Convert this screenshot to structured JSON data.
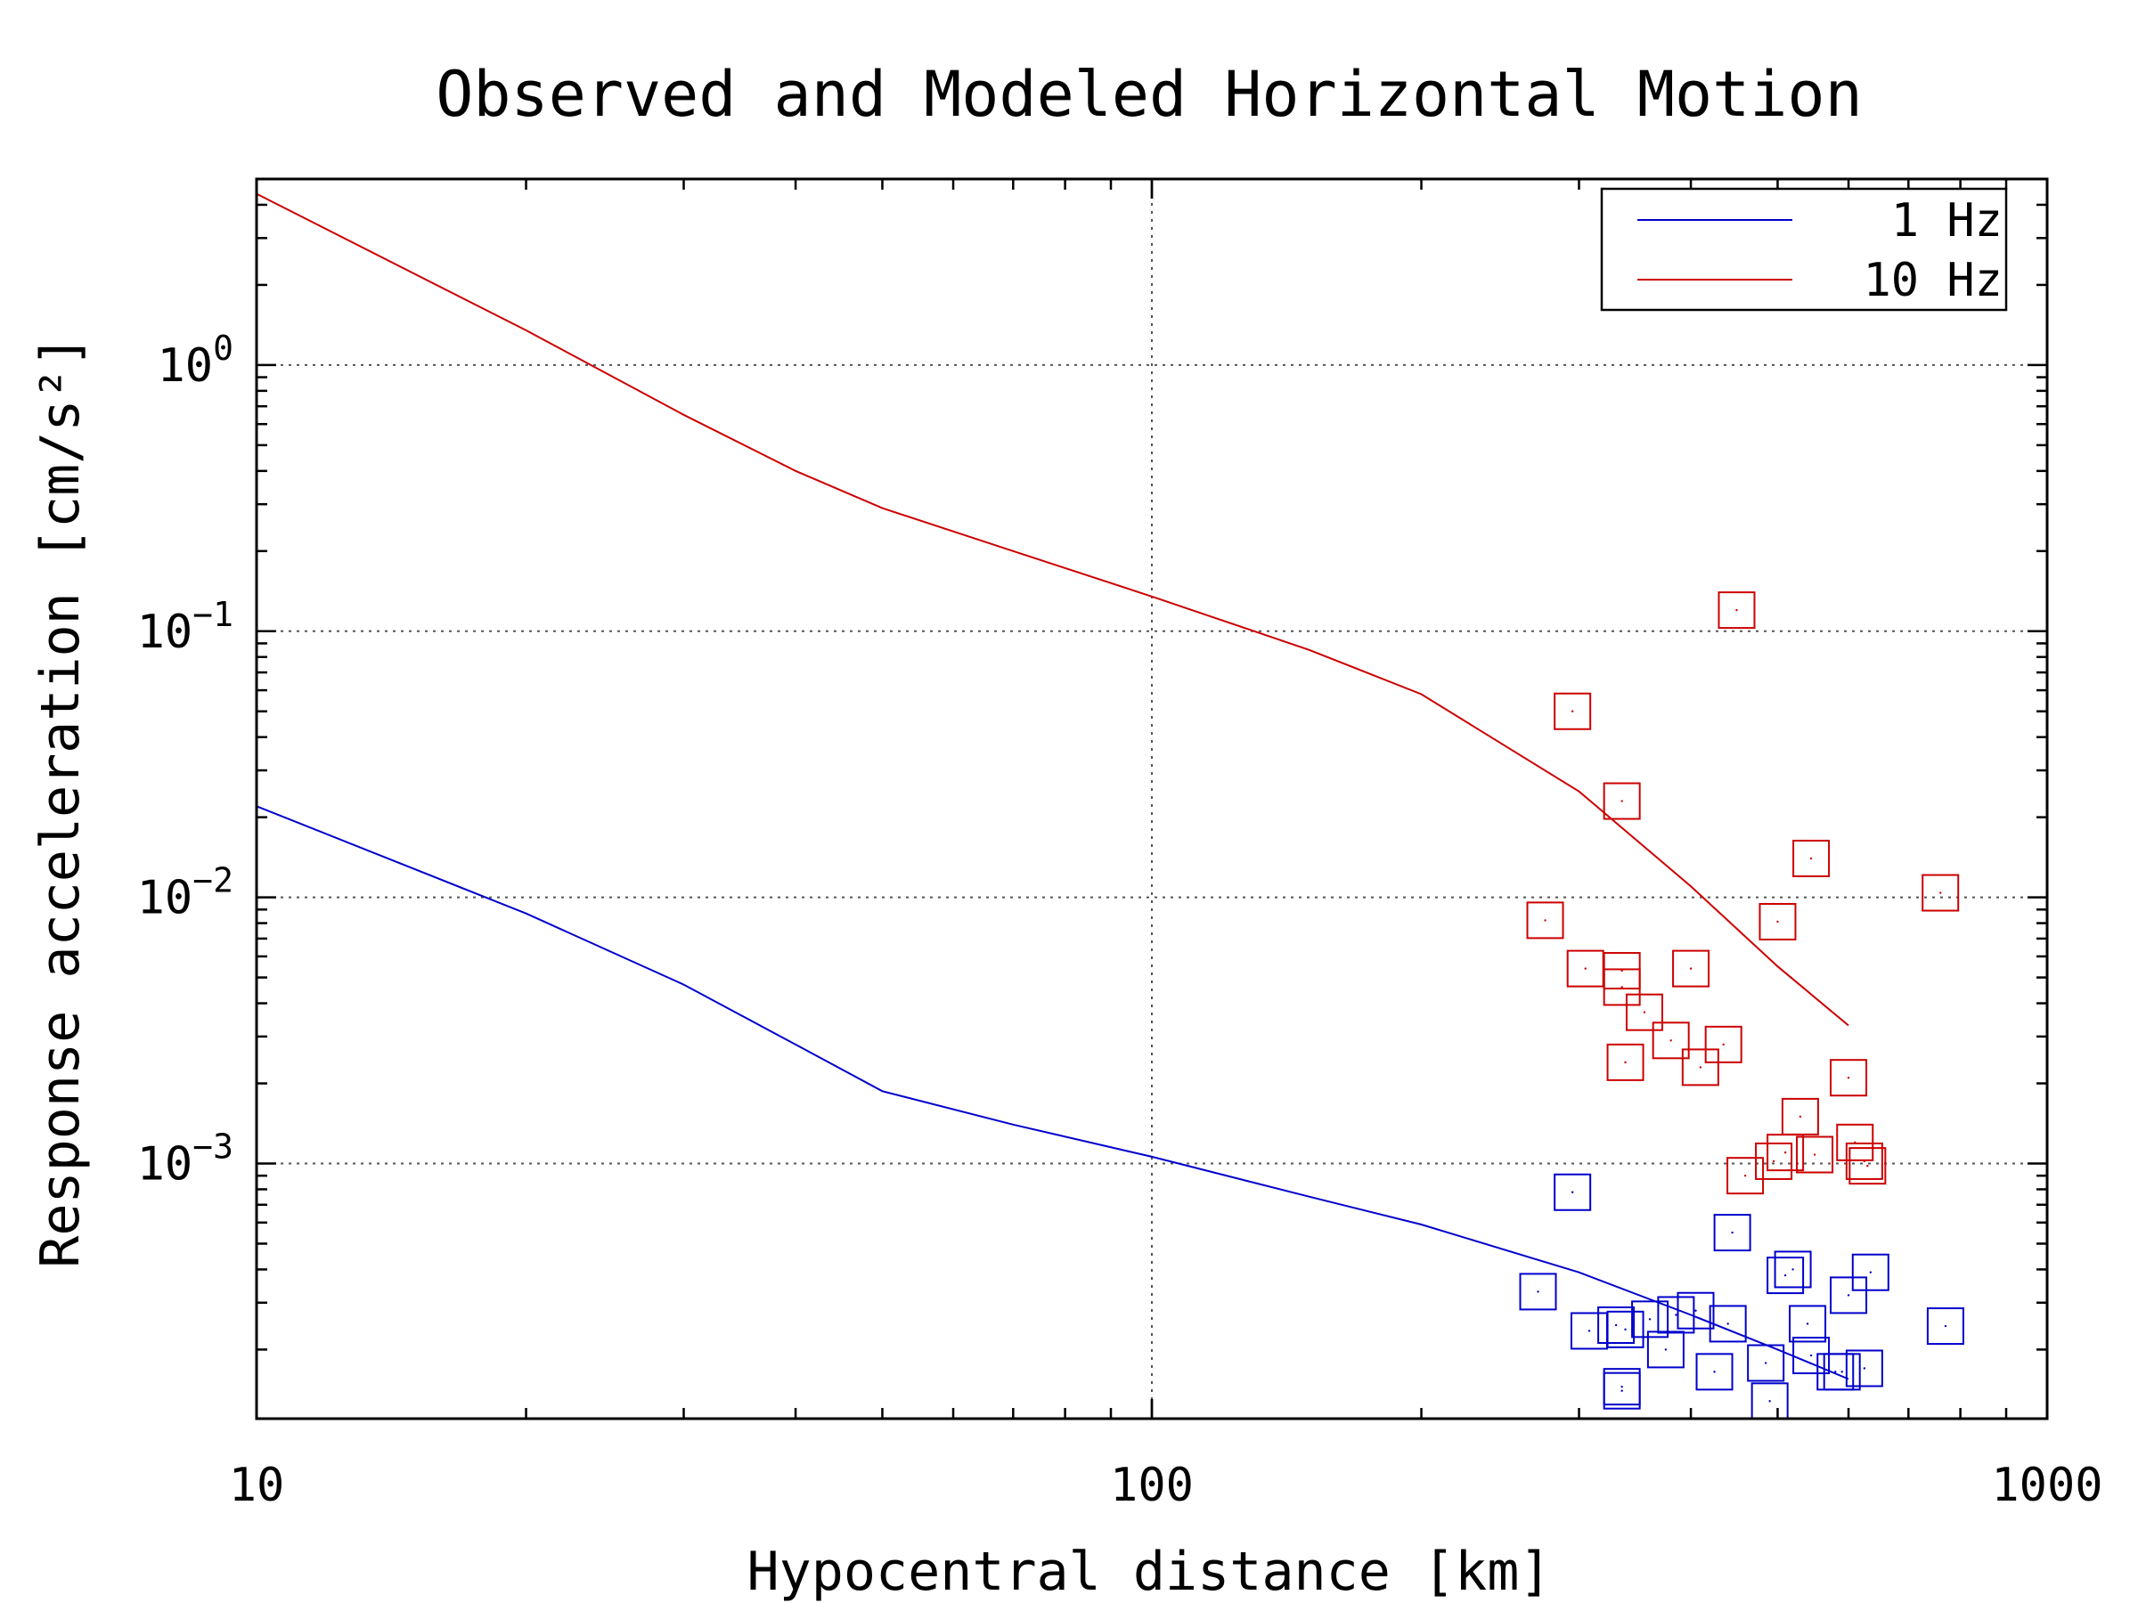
{
  "chart_data": {
    "type": "scatter",
    "title": "Observed and Modeled Horizontal Motion",
    "xlabel": "Hypocentral distance [km]",
    "ylabel": "Response acceleration [cm/s²]",
    "xscale": "log",
    "yscale": "log",
    "xlim": [
      10,
      1000
    ],
    "ylim": [
      0.00011,
      5
    ],
    "x_ticks": [
      10,
      100,
      1000
    ],
    "x_tick_labels": [
      "10",
      "100",
      "1000"
    ],
    "y_ticks": [
      0.001,
      0.01,
      0.1,
      1
    ],
    "y_tick_labels": [
      {
        "base": "10",
        "exp": "−3"
      },
      {
        "base": "10",
        "exp": "−2"
      },
      {
        "base": "10",
        "exp": "−1"
      },
      {
        "base": "10",
        "exp": "0"
      }
    ],
    "grid": true,
    "legend_position": "top-right",
    "series": [
      {
        "name": "1 Hz",
        "kind": "line",
        "color": "#0000cc",
        "x": [
          10,
          20,
          30,
          40,
          50,
          70,
          100,
          150,
          200,
          300,
          400,
          500,
          600
        ],
        "y": [
          0.022,
          0.0087,
          0.0047,
          0.0028,
          0.00187,
          0.0014,
          0.00106,
          0.00075,
          0.00059,
          0.00039,
          0.00027,
          0.0002,
          0.000155
        ]
      },
      {
        "name": "10 Hz",
        "kind": "line",
        "color": "#cc0000",
        "x": [
          10,
          20,
          30,
          40,
          50,
          70,
          100,
          150,
          200,
          300,
          400,
          500,
          600
        ],
        "y": [
          4.4,
          1.35,
          0.65,
          0.4,
          0.29,
          0.2,
          0.135,
          0.085,
          0.058,
          0.025,
          0.011,
          0.0055,
          0.0033
        ]
      },
      {
        "name": "",
        "kind": "markers",
        "marker": "square",
        "color": "#cc0000",
        "x": [
          275,
          295,
          305,
          335,
          335,
          335,
          338,
          355,
          380,
          400,
          410,
          435,
          450,
          460,
          495,
          500,
          510,
          530,
          545,
          550,
          600,
          610,
          625,
          630,
          760
        ],
        "y": [
          0.0082,
          0.05,
          0.0054,
          0.023,
          0.0053,
          0.0046,
          0.0024,
          0.0037,
          0.0029,
          0.0054,
          0.0023,
          0.0028,
          0.12,
          0.0009,
          0.00102,
          0.0081,
          0.0011,
          0.0015,
          0.014,
          0.00108,
          0.0021,
          0.0012,
          0.00102,
          0.00098,
          0.0104
        ]
      },
      {
        "name": "",
        "kind": "markers",
        "marker": "square",
        "color": "#0000cc",
        "x": [
          270,
          295,
          308,
          330,
          335,
          335,
          338,
          360,
          375,
          385,
          405,
          425,
          440,
          445,
          485,
          490,
          510,
          520,
          540,
          545,
          580,
          590,
          600,
          625,
          635,
          770
        ],
        "y": [
          0.00033,
          0.00078,
          0.000235,
          0.000247,
          0.000145,
          0.00014,
          0.000238,
          0.00026,
          0.0002,
          0.00027,
          0.00028,
          0.000165,
          0.00025,
          0.00055,
          0.000178,
          0.000128,
          0.00038,
          0.0004,
          0.00025,
          0.00019,
          0.000165,
          0.000165,
          0.00032,
          0.00017,
          0.00039,
          0.000245
        ]
      }
    ]
  }
}
